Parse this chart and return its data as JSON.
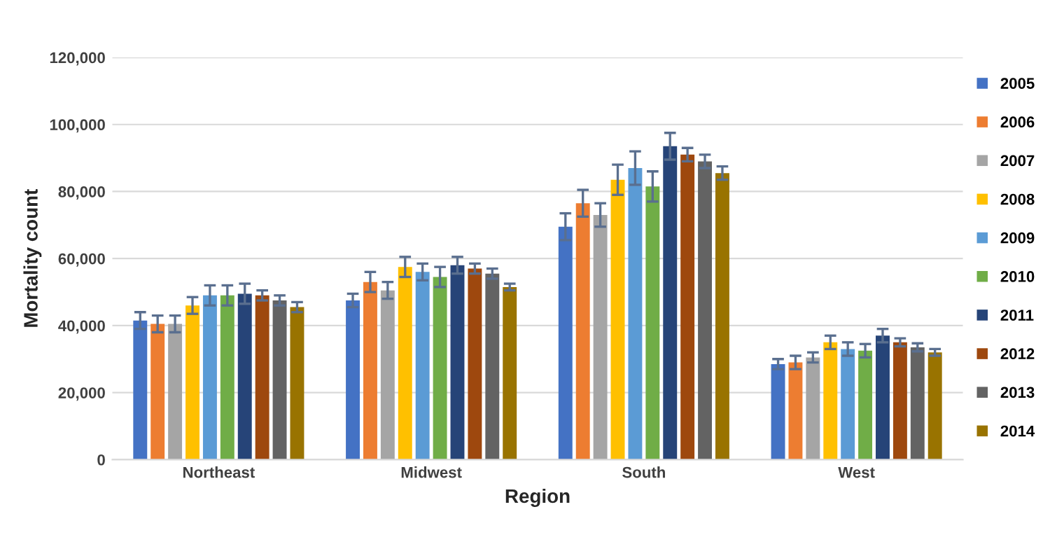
{
  "chart_data": {
    "type": "bar",
    "xlabel": "Region",
    "ylabel": "Mortality count",
    "categories": [
      "Northeast",
      "Midwest",
      "South",
      "West"
    ],
    "series": [
      {
        "name": "2005",
        "color": "#4472c4",
        "values": [
          41500,
          47500,
          69500,
          28500
        ],
        "errors": [
          2500,
          2000,
          4000,
          1500
        ]
      },
      {
        "name": "2006",
        "color": "#ed7d31",
        "values": [
          40500,
          53000,
          76500,
          29000
        ],
        "errors": [
          2500,
          3000,
          4000,
          2000
        ]
      },
      {
        "name": "2007",
        "color": "#a5a5a5",
        "values": [
          40500,
          50500,
          73000,
          30500
        ],
        "errors": [
          2500,
          2500,
          3500,
          1500
        ]
      },
      {
        "name": "2008",
        "color": "#ffc000",
        "values": [
          46000,
          57500,
          83500,
          35000
        ],
        "errors": [
          2500,
          3000,
          4500,
          2000
        ]
      },
      {
        "name": "2009",
        "color": "#5b9bd5",
        "values": [
          49000,
          56000,
          87000,
          33000
        ],
        "errors": [
          3000,
          2500,
          5000,
          2000
        ]
      },
      {
        "name": "2010",
        "color": "#70ad47",
        "values": [
          49000,
          54500,
          81500,
          32500
        ],
        "errors": [
          3000,
          3000,
          4500,
          2000
        ]
      },
      {
        "name": "2011",
        "color": "#264478",
        "values": [
          49500,
          58000,
          93500,
          37000
        ],
        "errors": [
          3000,
          2500,
          4000,
          2000
        ]
      },
      {
        "name": "2012",
        "color": "#9e480e",
        "values": [
          49000,
          57000,
          91000,
          35000
        ],
        "errors": [
          1500,
          1500,
          2000,
          1200
        ]
      },
      {
        "name": "2013",
        "color": "#636363",
        "values": [
          47500,
          55500,
          89000,
          33500
        ],
        "errors": [
          1500,
          1500,
          2000,
          1200
        ]
      },
      {
        "name": "2014",
        "color": "#997300",
        "values": [
          45500,
          51500,
          85500,
          32000
        ],
        "errors": [
          1500,
          1000,
          2000,
          1000
        ]
      }
    ],
    "ylim": [
      0,
      120000
    ],
    "yticks": [
      {
        "value": 0,
        "label": "0"
      },
      {
        "value": 20000,
        "label": "20,000"
      },
      {
        "value": 40000,
        "label": "40,000"
      },
      {
        "value": 60000,
        "label": "60,000"
      },
      {
        "value": 80000,
        "label": "80,000"
      },
      {
        "value": 100000,
        "label": "100,000"
      },
      {
        "value": 120000,
        "label": "120,000"
      }
    ],
    "grid": "y",
    "legend": "right"
  }
}
